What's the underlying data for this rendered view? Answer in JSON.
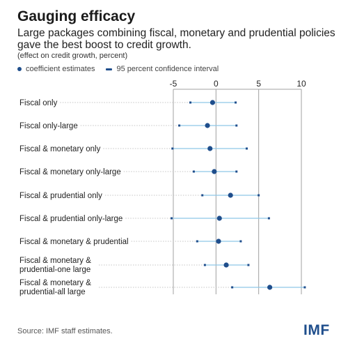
{
  "header": {
    "title": "Gauging efficacy",
    "subtitle": "Large packages combining fiscal, monetary and prudential policies gave the best boost to credit growth.",
    "units": "(effect on credit growth, percent)"
  },
  "legend": {
    "estimate_label": "coefficient estimates",
    "interval_label": "95 percent confidence interval"
  },
  "footer": {
    "source": "Source:  IMF staff estimates.",
    "logo": "IMF"
  },
  "colors": {
    "marker": "#1f4e8c",
    "interval": "#8ec6e8",
    "axis": "#a0a0a0",
    "guide": "#c4c4c4"
  },
  "chart_data": {
    "type": "scatter",
    "subtype": "coefficient plot with confidence intervals",
    "xlim": [
      -5,
      10
    ],
    "xticks": [
      -5,
      0,
      5,
      10
    ],
    "x_axis_position": "top",
    "grid": "vertical gridlines at ticks",
    "legend_position": "top-left",
    "categories": [
      [
        "Fiscal only"
      ],
      [
        "Fiscal only-large"
      ],
      [
        "Fiscal & monetary only"
      ],
      [
        "Fiscal & monetary only-large"
      ],
      [
        "Fiscal & prudential only"
      ],
      [
        "Fiscal  & prudential only-large"
      ],
      [
        "Fiscal & monetary & prudential"
      ],
      [
        "Fiscal & monetary &",
        "prudential-one large"
      ],
      [
        "Fiscal & monetary &",
        "prudential-all large"
      ]
    ],
    "estimates": [
      -0.4,
      -1.0,
      -0.7,
      -0.2,
      1.7,
      0.4,
      0.3,
      1.2,
      6.3
    ],
    "ci_low": [
      -3.0,
      -4.3,
      -5.1,
      -2.6,
      -1.6,
      -5.2,
      -2.2,
      -1.3,
      1.9
    ],
    "ci_high": [
      2.3,
      2.4,
      3.6,
      2.4,
      5.0,
      6.2,
      2.9,
      3.8,
      10.4
    ]
  }
}
